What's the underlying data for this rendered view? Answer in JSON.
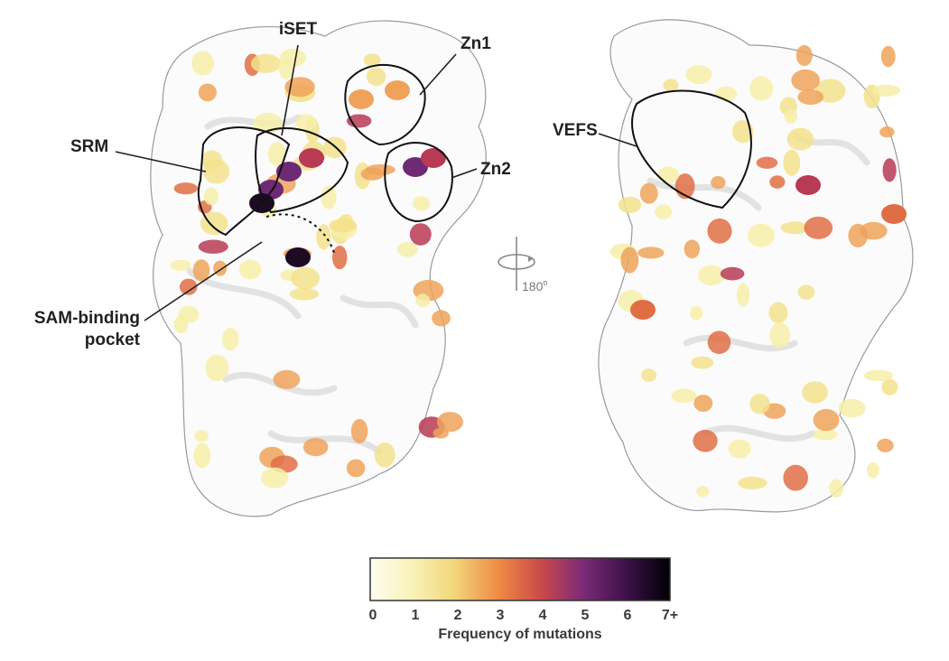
{
  "labels": {
    "iset": "iSET",
    "zn1": "Zn1",
    "srm": "SRM",
    "zn2": "Zn2",
    "sam": [
      "SAM-binding",
      "pocket"
    ],
    "vefs": "VEFS"
  },
  "rotation": {
    "degrees": "180",
    "unit": "o"
  },
  "colorbar": {
    "title": "Frequency of mutations",
    "ticks": [
      0,
      1,
      2,
      3,
      4,
      5,
      6,
      {
        "value": 7,
        "label": "7+"
      }
    ]
  }
}
